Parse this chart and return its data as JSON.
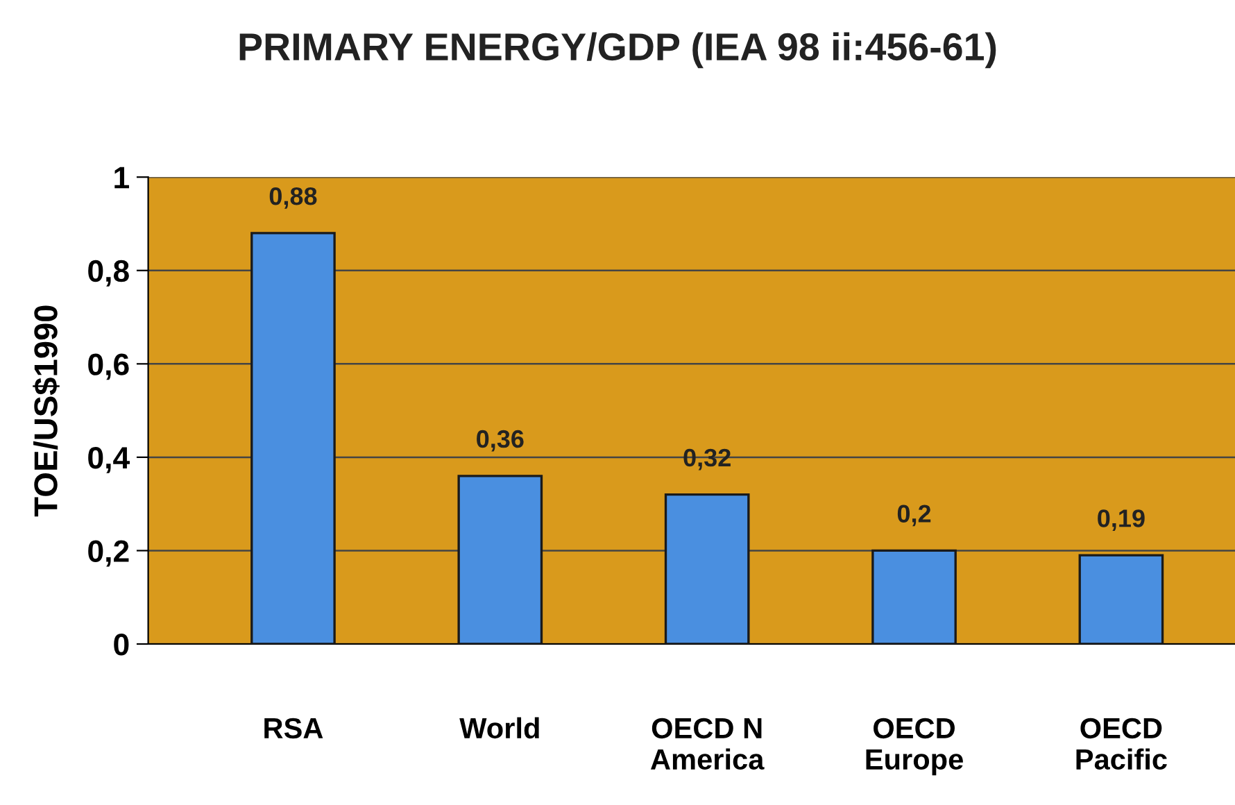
{
  "chart_data": {
    "type": "bar",
    "title": "PRIMARY ENERGY/GDP (IEA 98 ii:456-61)",
    "ylabel": "TOE/US$1990",
    "categories": [
      "RSA",
      "World",
      "OECD N\nAmerica",
      "OECD\nEurope",
      "OECD\nPacific"
    ],
    "values": [
      0.88,
      0.36,
      0.32,
      0.2,
      0.19
    ],
    "value_labels": [
      "0,88",
      "0,36",
      "0,32",
      "0,2",
      "0,19"
    ],
    "color": "#4a8fe0",
    "ylim": [
      0,
      1
    ],
    "yticks": [
      {
        "value": 0,
        "label": "0"
      },
      {
        "value": 0.2,
        "label": "0,2"
      },
      {
        "value": 0.4,
        "label": "0,4"
      },
      {
        "value": 0.6,
        "label": "0,6"
      },
      {
        "value": 0.8,
        "label": "0,8"
      },
      {
        "value": 1,
        "label": "1"
      }
    ],
    "grid": "y"
  }
}
